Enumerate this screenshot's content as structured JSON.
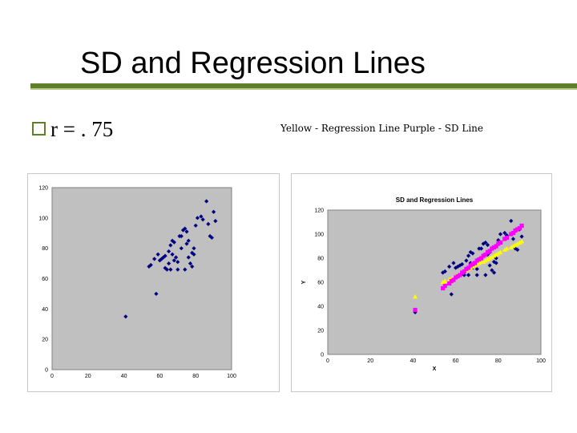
{
  "slide": {
    "title": "SD and Regression Lines",
    "bullet": "r = . 75",
    "legend_note": "Yellow - Regression Line   Purple - SD Line"
  },
  "colors": {
    "accent": "#5f7f2a",
    "plot_bg": "#c0c0c0",
    "points": "#000080",
    "regression": "#ffff00",
    "sd_line": "#ff00ff"
  },
  "chart_data": [
    {
      "type": "scatter",
      "title": "",
      "xlabel": "",
      "ylabel": "",
      "xlim": [
        0,
        100
      ],
      "ylim": [
        0,
        120
      ],
      "xticks": [
        0,
        20,
        40,
        60,
        80,
        100
      ],
      "yticks": [
        0,
        20,
        40,
        60,
        80,
        100,
        120
      ],
      "grid": false,
      "legend": "none",
      "series": [
        {
          "points": [
            [
              41,
              35
            ],
            [
              58,
              50
            ],
            [
              54,
              68
            ],
            [
              55,
              69
            ],
            [
              60,
              72
            ],
            [
              62,
              74
            ],
            [
              63,
              75
            ],
            [
              61,
              73
            ],
            [
              63,
              67
            ],
            [
              64,
              66
            ],
            [
              65,
              70
            ],
            [
              65,
              78
            ],
            [
              66,
              82
            ],
            [
              67,
              85
            ],
            [
              67,
              76
            ],
            [
              68,
              72
            ],
            [
              69,
              74
            ],
            [
              70,
              71
            ],
            [
              70,
              66
            ],
            [
              71,
              88
            ],
            [
              72,
              80
            ],
            [
              73,
              92
            ],
            [
              74,
              66
            ],
            [
              74,
              93
            ],
            [
              75,
              83
            ],
            [
              76,
              85
            ],
            [
              76,
              74
            ],
            [
              77,
              70
            ],
            [
              78,
              68
            ],
            [
              78,
              77
            ],
            [
              79,
              80
            ],
            [
              80,
              95
            ],
            [
              81,
              100
            ],
            [
              83,
              101
            ],
            [
              84,
              99
            ],
            [
              86,
              111
            ],
            [
              87,
              96
            ],
            [
              88,
              88
            ],
            [
              89,
              87
            ],
            [
              90,
              104
            ],
            [
              91,
              98
            ],
            [
              57,
              73
            ],
            [
              59,
              76
            ],
            [
              66,
              66
            ],
            [
              68,
              84
            ],
            [
              72,
              88
            ],
            [
              75,
              91
            ],
            [
              79,
              76
            ]
          ]
        }
      ]
    },
    {
      "type": "scatter",
      "title": "SD and Regression Lines",
      "xlabel": "X",
      "ylabel": "Y",
      "xlim": [
        0,
        100
      ],
      "ylim": [
        0,
        120
      ],
      "xticks": [
        0,
        20,
        40,
        60,
        80,
        100
      ],
      "yticks": [
        0,
        20,
        40,
        60,
        80,
        100,
        120
      ],
      "grid": false,
      "legend": "none",
      "series": [
        {
          "points": [
            [
              41,
              35
            ],
            [
              58,
              50
            ],
            [
              54,
              68
            ],
            [
              55,
              69
            ],
            [
              60,
              72
            ],
            [
              62,
              74
            ],
            [
              63,
              75
            ],
            [
              61,
              73
            ],
            [
              63,
              67
            ],
            [
              64,
              66
            ],
            [
              65,
              70
            ],
            [
              65,
              78
            ],
            [
              66,
              82
            ],
            [
              67,
              85
            ],
            [
              67,
              76
            ],
            [
              68,
              72
            ],
            [
              69,
              74
            ],
            [
              70,
              71
            ],
            [
              70,
              66
            ],
            [
              71,
              88
            ],
            [
              72,
              80
            ],
            [
              73,
              92
            ],
            [
              74,
              66
            ],
            [
              74,
              93
            ],
            [
              75,
              83
            ],
            [
              76,
              85
            ],
            [
              76,
              74
            ],
            [
              77,
              70
            ],
            [
              78,
              68
            ],
            [
              78,
              77
            ],
            [
              79,
              80
            ],
            [
              80,
              95
            ],
            [
              81,
              100
            ],
            [
              83,
              101
            ],
            [
              84,
              99
            ],
            [
              86,
              111
            ],
            [
              87,
              96
            ],
            [
              88,
              88
            ],
            [
              89,
              87
            ],
            [
              90,
              104
            ],
            [
              91,
              98
            ],
            [
              57,
              73
            ],
            [
              59,
              76
            ],
            [
              66,
              66
            ],
            [
              68,
              84
            ],
            [
              72,
              88
            ],
            [
              75,
              91
            ],
            [
              79,
              76
            ]
          ]
        },
        {
          "marker": "triangle",
          "points": [
            [
              41,
              48
            ],
            [
              54,
              60
            ],
            [
              55,
              61
            ],
            [
              57,
              62
            ],
            [
              58,
              63
            ],
            [
              59,
              64
            ],
            [
              60,
              65
            ],
            [
              61,
              66
            ],
            [
              62,
              67
            ],
            [
              63,
              68
            ],
            [
              64,
              69
            ],
            [
              65,
              70
            ],
            [
              66,
              71
            ],
            [
              67,
              72
            ],
            [
              68,
              73
            ],
            [
              69,
              74
            ],
            [
              70,
              75
            ],
            [
              71,
              76
            ],
            [
              72,
              77
            ],
            [
              73,
              77
            ],
            [
              74,
              78
            ],
            [
              75,
              79
            ],
            [
              76,
              80
            ],
            [
              77,
              81
            ],
            [
              78,
              82
            ],
            [
              79,
              83
            ],
            [
              80,
              84
            ],
            [
              81,
              85
            ],
            [
              83,
              87
            ],
            [
              84,
              88
            ],
            [
              86,
              89
            ],
            [
              87,
              90
            ],
            [
              88,
              91
            ],
            [
              89,
              92
            ],
            [
              90,
              93
            ],
            [
              91,
              94
            ]
          ]
        },
        {
          "marker": "square",
          "points": [
            [
              41,
              37
            ],
            [
              54,
              55
            ],
            [
              55,
              57
            ],
            [
              57,
              59
            ],
            [
              58,
              61
            ],
            [
              59,
              62
            ],
            [
              60,
              64
            ],
            [
              61,
              65
            ],
            [
              62,
              66
            ],
            [
              63,
              68
            ],
            [
              64,
              69
            ],
            [
              65,
              71
            ],
            [
              66,
              72
            ],
            [
              67,
              74
            ],
            [
              68,
              75
            ],
            [
              69,
              76
            ],
            [
              70,
              78
            ],
            [
              71,
              79
            ],
            [
              72,
              80
            ],
            [
              73,
              82
            ],
            [
              74,
              83
            ],
            [
              75,
              85
            ],
            [
              76,
              86
            ],
            [
              77,
              88
            ],
            [
              78,
              89
            ],
            [
              79,
              90
            ],
            [
              80,
              92
            ],
            [
              81,
              93
            ],
            [
              83,
              96
            ],
            [
              84,
              97
            ],
            [
              86,
              100
            ],
            [
              87,
              101
            ],
            [
              88,
              103
            ],
            [
              89,
              104
            ],
            [
              90,
              105
            ],
            [
              91,
              107
            ]
          ]
        }
      ]
    }
  ]
}
